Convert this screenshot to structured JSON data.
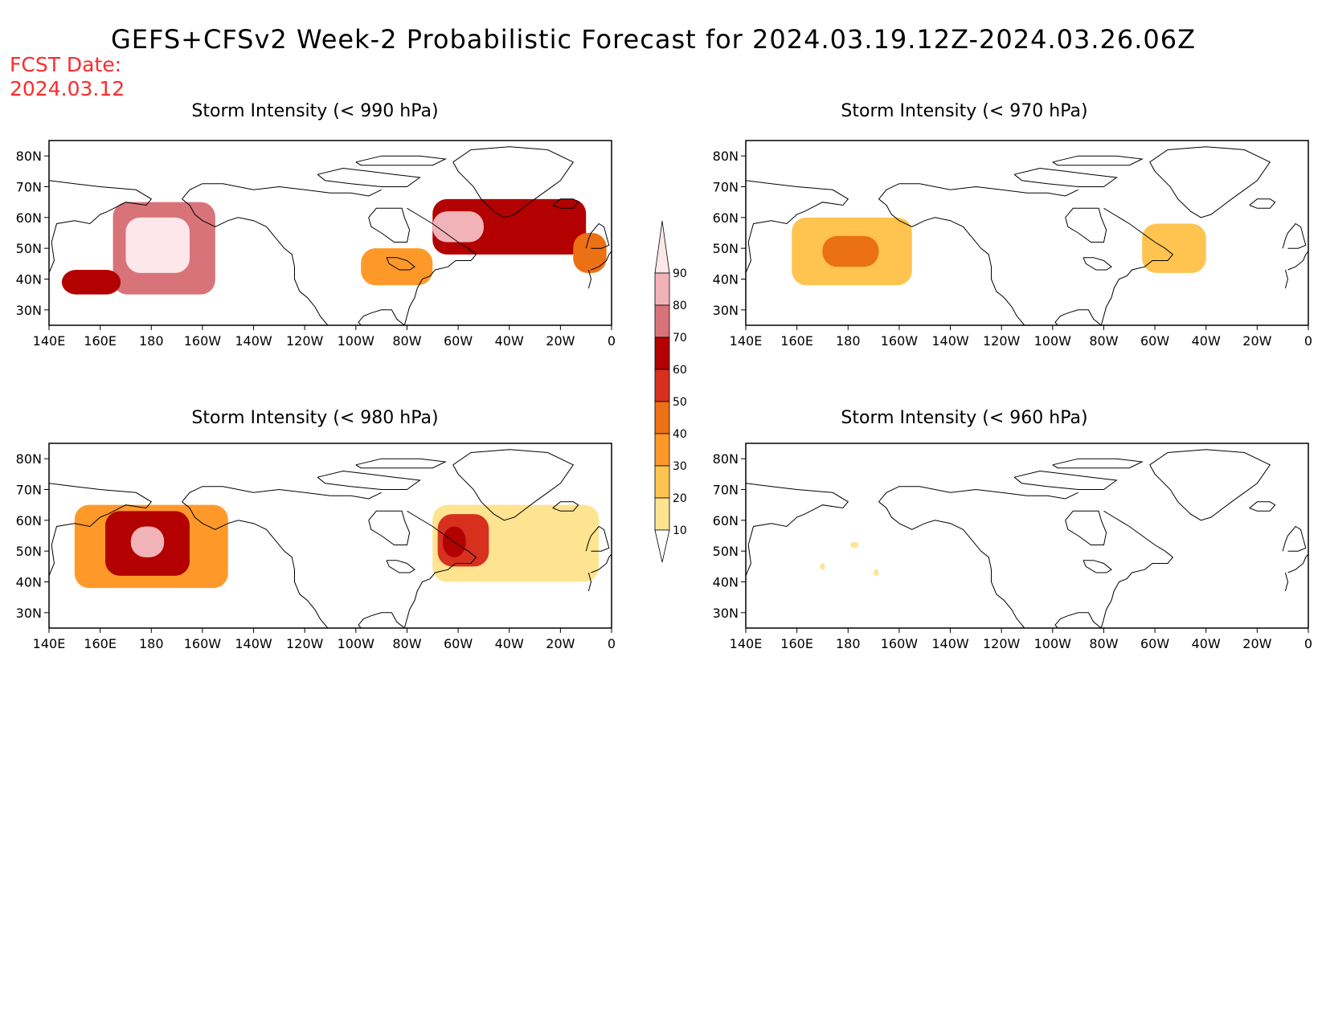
{
  "title": "GEFS+CFSv2 Week-2 Probabilistic Forecast for 2024.03.19.12Z-2024.03.26.06Z",
  "fcst_date_label": "FCST Date:",
  "fcst_date": "2024.03.12",
  "lat_labels": [
    "80N",
    "70N",
    "60N",
    "50N",
    "40N",
    "30N"
  ],
  "lat_values": [
    80,
    70,
    60,
    50,
    40,
    30
  ],
  "lon_labels": [
    "140E",
    "160E",
    "180",
    "160W",
    "140W",
    "120W",
    "100W",
    "80W",
    "60W",
    "40W",
    "20W",
    "0"
  ],
  "panels": [
    {
      "title": "Storm Intensity (< 990 hPa)",
      "threshold_hpa": 990
    },
    {
      "title": "Storm Intensity (< 970 hPa)",
      "threshold_hpa": 970
    },
    {
      "title": "Storm Intensity (< 980 hPa)",
      "threshold_hpa": 980
    },
    {
      "title": "Storm Intensity (< 960 hPa)",
      "threshold_hpa": 960
    }
  ],
  "colorbar": {
    "labels": [
      "10",
      "20",
      "30",
      "40",
      "50",
      "60",
      "70",
      "80",
      "90"
    ],
    "colors": [
      "#fff7bc",
      "#fee391",
      "#fec44f",
      "#fe9929",
      "#ec7014",
      "#d7301f",
      "#b30000",
      "#d9737a",
      "#f2b3b8",
      "#fde7ea"
    ]
  },
  "regions": [
    {
      "panel": 0,
      "areas": [
        {
          "lon": [
            165,
            205
          ],
          "lat": [
            35,
            65
          ],
          "level": 7
        },
        {
          "lon": [
            170,
            195
          ],
          "lat": [
            42,
            60
          ],
          "level": 9
        },
        {
          "lon": [
            145,
            168
          ],
          "lat": [
            35,
            43
          ],
          "level": 6
        },
        {
          "lon": [
            290,
            350
          ],
          "lat": [
            48,
            66
          ],
          "level": 6
        },
        {
          "lon": [
            290,
            310
          ],
          "lat": [
            52,
            62
          ],
          "level": 8
        },
        {
          "lon": [
            262,
            290
          ],
          "lat": [
            38,
            50
          ],
          "level": 3
        },
        {
          "lon": [
            345,
            358
          ],
          "lat": [
            42,
            55
          ],
          "level": 4
        }
      ]
    },
    {
      "panel": 1,
      "areas": [
        {
          "lon": [
            158,
            205
          ],
          "lat": [
            38,
            60
          ],
          "level": 2
        },
        {
          "lon": [
            170,
            192
          ],
          "lat": [
            44,
            54
          ],
          "level": 4
        },
        {
          "lon": [
            295,
            320
          ],
          "lat": [
            42,
            58
          ],
          "level": 2
        }
      ]
    },
    {
      "panel": 2,
      "areas": [
        {
          "lon": [
            150,
            210
          ],
          "lat": [
            38,
            65
          ],
          "level": 3
        },
        {
          "lon": [
            162,
            195
          ],
          "lat": [
            42,
            63
          ],
          "level": 6
        },
        {
          "lon": [
            172,
            185
          ],
          "lat": [
            48,
            58
          ],
          "level": 8
        },
        {
          "lon": [
            290,
            355
          ],
          "lat": [
            40,
            65
          ],
          "level": 1
        },
        {
          "lon": [
            292,
            312
          ],
          "lat": [
            45,
            62
          ],
          "level": 5
        },
        {
          "lon": [
            294,
            303
          ],
          "lat": [
            48,
            58
          ],
          "level": 6
        }
      ]
    },
    {
      "panel": 3,
      "areas": [
        {
          "lon": [
            181,
            184
          ],
          "lat": [
            51,
            53
          ],
          "level": 1
        },
        {
          "lon": [
            169,
            171
          ],
          "lat": [
            44,
            46
          ],
          "level": 1
        },
        {
          "lon": [
            190,
            192
          ],
          "lat": [
            42,
            44
          ],
          "level": 1
        }
      ]
    }
  ]
}
